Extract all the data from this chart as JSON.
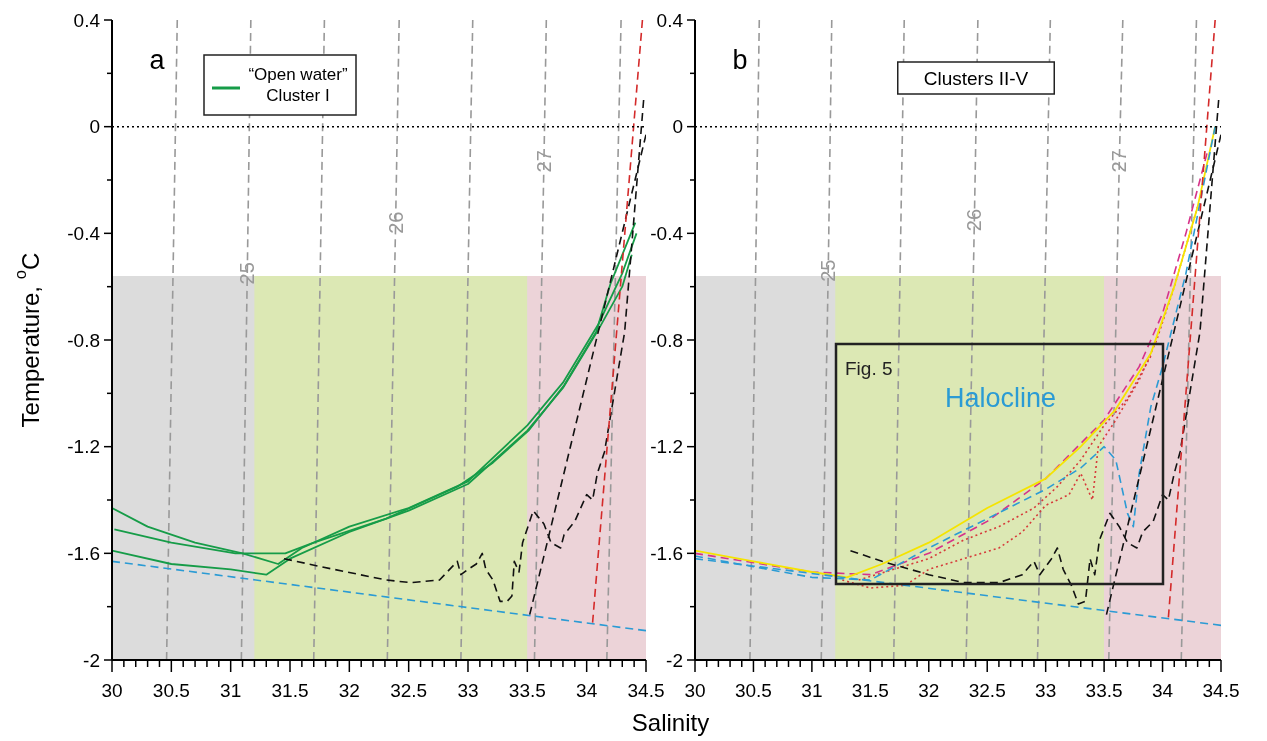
{
  "chart_data": [
    {
      "type": "line",
      "title": "a",
      "xlabel": "Salinity",
      "ylabel": "Temperature, $^{o}$C",
      "xlim": [
        30,
        34.5
      ],
      "ylim": [
        -2,
        0.4
      ],
      "xticks": [
        30,
        {
          "value": 30.1,
          "label": null
        },
        {
          "value": 30.2,
          "label": null
        },
        {
          "value": 30.3,
          "label": null
        },
        {
          "value": 30.4,
          "label": null
        },
        30.5,
        {
          "value": 30.6,
          "label": null
        },
        {
          "value": 30.7,
          "label": null
        },
        {
          "value": 30.8,
          "label": null
        },
        {
          "value": 30.9,
          "label": null
        },
        31,
        {
          "value": 31.1,
          "label": null
        },
        {
          "value": 31.2,
          "label": null
        },
        {
          "value": 31.3,
          "label": null
        },
        {
          "value": 31.4,
          "label": null
        },
        31.5,
        {
          "value": 31.6,
          "label": null
        },
        {
          "value": 31.7,
          "label": null
        },
        {
          "value": 31.8,
          "label": null
        },
        {
          "value": 31.9,
          "label": null
        },
        32,
        {
          "value": 32.1,
          "label": null
        },
        {
          "value": 32.2,
          "label": null
        },
        {
          "value": 32.3,
          "label": null
        },
        {
          "value": 32.4,
          "label": null
        },
        32.5,
        {
          "value": 32.6,
          "label": null
        },
        {
          "value": 32.7,
          "label": null
        },
        {
          "value": 32.8,
          "label": null
        },
        {
          "value": 32.9,
          "label": null
        },
        33,
        {
          "value": 33.1,
          "label": null
        },
        {
          "value": 33.2,
          "label": null
        },
        {
          "value": 33.3,
          "label": null
        },
        {
          "value": 33.4,
          "label": null
        },
        33.5,
        {
          "value": 33.6,
          "label": null
        },
        {
          "value": 33.7,
          "label": null
        },
        {
          "value": 33.8,
          "label": null
        },
        {
          "value": 33.9,
          "label": null
        },
        34,
        {
          "value": 34.1,
          "label": null
        },
        {
          "value": 34.2,
          "label": null
        },
        {
          "value": 34.3,
          "label": null
        },
        {
          "value": 34.4,
          "label": null
        },
        34.5
      ],
      "yticks": [
        -2,
        {
          "value": -1.8,
          "label": null
        },
        -1.6,
        {
          "value": -1.4,
          "label": null
        },
        -1.2,
        {
          "value": -1,
          "label": null
        },
        -0.8,
        {
          "value": -0.6,
          "label": null
        },
        -0.4,
        {
          "value": -0.2,
          "label": null
        },
        0,
        {
          "value": 0.2,
          "label": null
        },
        0.4
      ],
      "legend": "top left",
      "ref_lines": [
        {
          "axis": "y",
          "value": 0,
          "color": "#000000",
          "line_style": "dotted"
        }
      ],
      "bands": [
        {
          "axis": "y",
          "from": -2,
          "to": -0.56,
          "color": "#dcdcdc"
        },
        {
          "axis": "x",
          "from": 31.2,
          "to": 33.5,
          "color": "#dce8b4"
        },
        {
          "axis": "x",
          "from": 33.5,
          "to": 34.5,
          "color": "#ecd3d8"
        }
      ],
      "series": [
        {
          "color": "#999999",
          "line_style": "dashed",
          "x": [
            30.46,
            30.55
          ],
          "values": [
            -2,
            0.4
          ]
        },
        {
          "name": "25",
          "color": "#999999",
          "line_style": "dashed",
          "x": [
            31.09,
            31.14,
            31.17
          ],
          "values": [
            -2,
            -0.55,
            0.4
          ]
        },
        {
          "color": "#999999",
          "line_style": "dashed",
          "x": [
            31.7,
            31.79
          ],
          "values": [
            -2,
            0.4
          ]
        },
        {
          "name": "26",
          "color": "#999999",
          "line_style": "dashed",
          "x": [
            32.32,
            32.39,
            32.42
          ],
          "values": [
            -2,
            -0.36,
            0.4
          ]
        },
        {
          "color": "#999999",
          "line_style": "dashed",
          "x": [
            32.94,
            33.04
          ],
          "values": [
            -2,
            0.4
          ]
        },
        {
          "name": "27",
          "color": "#999999",
          "line_style": "dashed",
          "x": [
            33.56,
            33.64,
            33.66
          ],
          "values": [
            -2,
            -0.13,
            0.4
          ]
        },
        {
          "color": "#999999",
          "line_style": "dashed",
          "x": [
            34.17,
            34.29
          ],
          "values": [
            -2,
            0.4
          ]
        },
        {
          "color": "#169c48",
          "line_style": "solid",
          "x": [
            30,
            30.3,
            30.7,
            31.1,
            31.4,
            31.6,
            32,
            32.5,
            33,
            33.5,
            33.8,
            34.1,
            34.3,
            34.42
          ],
          "values": [
            -1.43,
            -1.5,
            -1.56,
            -1.6,
            -1.64,
            -1.58,
            -1.5,
            -1.43,
            -1.33,
            -1.12,
            -0.96,
            -0.74,
            -0.55,
            -0.4
          ]
        },
        {
          "color": "#169c48",
          "line_style": "solid",
          "x": [
            30,
            30.5,
            31,
            31.3,
            31.5,
            32,
            32.5,
            33,
            33.5,
            33.8,
            34.1,
            34.3,
            34.38
          ],
          "values": [
            -1.59,
            -1.64,
            -1.66,
            -1.68,
            -1.62,
            -1.52,
            -1.44,
            -1.34,
            -1.14,
            -0.98,
            -0.76,
            -0.6,
            -0.48
          ]
        },
        {
          "name": "“Open water” Cluster I",
          "color": "#169c48",
          "line_style": "solid",
          "x": [
            30.02,
            30.5,
            31.04,
            31.46,
            31.7,
            32.31,
            32.91,
            33.21,
            33.51,
            33.81,
            34.08,
            34.2,
            34.41
          ],
          "values": [
            -1.51,
            -1.56,
            -1.6,
            -1.6,
            -1.56,
            -1.47,
            -1.35,
            -1.26,
            -1.14,
            -0.97,
            -0.77,
            -0.59,
            -0.36
          ]
        },
        {
          "color": "#111111",
          "line_style": "dashed",
          "x": [
            31.45,
            31.76,
            32.31,
            32.52,
            32.76,
            32.91,
            32.94,
            33,
            33.07,
            33.12,
            33.15,
            33.21,
            33.27,
            33.33,
            33.37,
            33.39,
            33.43,
            33.46,
            33.55,
            33.64,
            33.7,
            33.78,
            33.81,
            33.9,
            34,
            34.05,
            34.09,
            34.15,
            34.32,
            34.48
          ],
          "values": [
            -1.62,
            -1.65,
            -1.7,
            -1.71,
            -1.7,
            -1.63,
            -1.68,
            -1.66,
            -1.64,
            -1.6,
            -1.66,
            -1.7,
            -1.78,
            -1.78,
            -1.76,
            -1.63,
            -1.67,
            -1.56,
            -1.44,
            -1.49,
            -1.56,
            -1.58,
            -1.53,
            -1.48,
            -1.38,
            -1.4,
            -1.3,
            -1.22,
            -0.77,
            0.1
          ]
        },
        {
          "color": "#111111",
          "line_style": "dashed",
          "x": [
            33.52,
            34.5
          ],
          "values": [
            -1.83,
            -0.03
          ]
        },
        {
          "color": "#d42a2a",
          "line_style": "dashed",
          "x": [
            34.05,
            34.47
          ],
          "values": [
            -1.86,
            0.4
          ]
        },
        {
          "color": "#2b9bd4",
          "line_style": "dashed",
          "x": [
            30,
            34.5
          ],
          "values": [
            -1.63,
            -1.89
          ]
        }
      ]
    },
    {
      "type": "line",
      "title": "b",
      "xlim": [
        30,
        34.5
      ],
      "ylim": [
        -2,
        0.4
      ],
      "xticks": [
        30,
        {
          "value": 30.1,
          "label": null
        },
        {
          "value": 30.2,
          "label": null
        },
        {
          "value": 30.3,
          "label": null
        },
        {
          "value": 30.4,
          "label": null
        },
        30.5,
        {
          "value": 30.6,
          "label": null
        },
        {
          "value": 30.7,
          "label": null
        },
        {
          "value": 30.8,
          "label": null
        },
        {
          "value": 30.9,
          "label": null
        },
        31,
        {
          "value": 31.1,
          "label": null
        },
        {
          "value": 31.2,
          "label": null
        },
        {
          "value": 31.3,
          "label": null
        },
        {
          "value": 31.4,
          "label": null
        },
        31.5,
        {
          "value": 31.6,
          "label": null
        },
        {
          "value": 31.7,
          "label": null
        },
        {
          "value": 31.8,
          "label": null
        },
        {
          "value": 31.9,
          "label": null
        },
        32,
        {
          "value": 32.1,
          "label": null
        },
        {
          "value": 32.2,
          "label": null
        },
        {
          "value": 32.3,
          "label": null
        },
        {
          "value": 32.4,
          "label": null
        },
        32.5,
        {
          "value": 32.6,
          "label": null
        },
        {
          "value": 32.7,
          "label": null
        },
        {
          "value": 32.8,
          "label": null
        },
        {
          "value": 32.9,
          "label": null
        },
        33,
        {
          "value": 33.1,
          "label": null
        },
        {
          "value": 33.2,
          "label": null
        },
        {
          "value": 33.3,
          "label": null
        },
        {
          "value": 33.4,
          "label": null
        },
        33.5,
        {
          "value": 33.6,
          "label": null
        },
        {
          "value": 33.7,
          "label": null
        },
        {
          "value": 33.8,
          "label": null
        },
        {
          "value": 33.9,
          "label": null
        },
        34,
        {
          "value": 34.1,
          "label": null
        },
        {
          "value": 34.2,
          "label": null
        },
        {
          "value": 34.3,
          "label": null
        },
        {
          "value": 34.4,
          "label": null
        },
        34.5
      ],
      "yticks": [
        -2,
        {
          "value": -1.8,
          "label": null
        },
        -1.6,
        {
          "value": -1.4,
          "label": null
        },
        -1.2,
        {
          "value": -1,
          "label": null
        },
        -0.8,
        {
          "value": -0.6,
          "label": null
        },
        -0.4,
        {
          "value": -0.2,
          "label": null
        },
        0,
        {
          "value": 0.2,
          "label": null
        },
        0.4
      ],
      "ref_lines": [
        {
          "axis": "y",
          "value": 0,
          "color": "#000000",
          "line_style": "dotted"
        }
      ],
      "annotations": [
        "Clusters II-V",
        "Fig. 5",
        "Halocline"
      ],
      "bands": [
        {
          "axis": "y",
          "from": -2,
          "to": -0.56,
          "color": "#dcdcdc"
        },
        {
          "axis": "x",
          "from": 31.2,
          "to": 33.5,
          "color": "#dce8b4"
        },
        {
          "axis": "x",
          "from": 33.5,
          "to": 34.5,
          "color": "#ecd3d8"
        }
      ],
      "series": [
        {
          "color": "#999999",
          "line_style": "dashed",
          "x": [
            30.47,
            30.55
          ],
          "values": [
            -2,
            0.4
          ]
        },
        {
          "name": "25",
          "color": "#999999",
          "line_style": "dashed",
          "x": [
            31.08,
            31.14,
            31.17
          ],
          "values": [
            -2,
            -0.54,
            0.4
          ]
        },
        {
          "color": "#999999",
          "line_style": "dashed",
          "x": [
            31.7,
            31.79
          ],
          "values": [
            -2,
            0.4
          ]
        },
        {
          "name": "26",
          "color": "#999999",
          "line_style": "dashed",
          "x": [
            32.32,
            32.39,
            32.42
          ],
          "values": [
            -2,
            -0.35,
            0.4
          ]
        },
        {
          "color": "#999999",
          "line_style": "dashed",
          "x": [
            32.93,
            33.04
          ],
          "values": [
            -2,
            0.4
          ]
        },
        {
          "name": "27",
          "color": "#999999",
          "line_style": "dashed",
          "x": [
            33.54,
            33.63,
            33.66
          ],
          "values": [
            -2,
            -0.13,
            0.4
          ]
        },
        {
          "color": "#999999",
          "line_style": "dashed",
          "x": [
            34.16,
            34.29
          ],
          "values": [
            -2,
            0.4
          ]
        },
        {
          "color": "#d63a3a",
          "line_style": "dotted",
          "x": [
            31.26,
            31.5,
            31.8,
            32,
            32.3,
            32.6,
            32.8,
            33,
            33.2,
            33.3,
            33.4,
            33.45,
            33.6,
            33.8,
            33.95,
            34.1,
            34.3
          ],
          "values": [
            -1.7,
            -1.73,
            -1.72,
            -1.66,
            -1.62,
            -1.58,
            -1.52,
            -1.42,
            -1.38,
            -1.3,
            -1.4,
            -1.2,
            -1.1,
            -0.95,
            -0.8,
            -0.6,
            -0.3
          ]
        },
        {
          "color": "#d63a3a",
          "line_style": "dotted",
          "x": [
            31.4,
            31.7,
            32,
            32.3,
            32.6,
            32.9,
            33.1,
            33.3,
            33.5,
            33.7,
            33.9
          ],
          "values": [
            -1.7,
            -1.66,
            -1.62,
            -1.55,
            -1.5,
            -1.43,
            -1.35,
            -1.25,
            -1.12,
            -1.02,
            -0.86
          ]
        },
        {
          "color": "#d6338a",
          "line_style": "dashed",
          "x": [
            30,
            31,
            31.5,
            32,
            32.5,
            33,
            33.5,
            33.8,
            34,
            34.2,
            34.38
          ],
          "values": [
            -1.6,
            -1.67,
            -1.68,
            -1.6,
            -1.48,
            -1.32,
            -1.1,
            -0.9,
            -0.7,
            -0.4,
            -0.1
          ]
        },
        {
          "color": "#f5e400",
          "line_style": "solid",
          "x": [
            30,
            30.5,
            31,
            31.3,
            31.6,
            32,
            32.5,
            33,
            33.3,
            33.6,
            33.9,
            34.1,
            34.3,
            34.45
          ],
          "values": [
            -1.59,
            -1.63,
            -1.67,
            -1.69,
            -1.64,
            -1.56,
            -1.43,
            -1.32,
            -1.2,
            -1.06,
            -0.85,
            -0.6,
            -0.3,
            0
          ]
        },
        {
          "color": "#2b9bd4",
          "line_style": "dashed",
          "x": [
            30,
            30.5,
            31,
            31.5,
            32,
            32.5,
            33,
            33.3,
            33.5,
            33.6,
            33.7,
            33.75,
            33.8,
            33.9,
            34,
            34.2,
            34.45
          ],
          "values": [
            -1.61,
            -1.65,
            -1.69,
            -1.7,
            -1.58,
            -1.47,
            -1.36,
            -1.28,
            -1.2,
            -1.25,
            -1.45,
            -1.5,
            -1.3,
            -1.05,
            -0.9,
            -0.55,
            0
          ]
        },
        {
          "color": "#111111",
          "line_style": "dashed",
          "x": [
            31.33,
            31.6,
            32,
            32.3,
            32.6,
            32.8,
            32.9,
            32.95,
            33.05,
            33.1,
            33.15,
            33.22,
            33.28,
            33.34,
            33.38,
            33.42,
            33.46,
            33.55,
            33.63,
            33.7,
            33.78,
            33.83,
            33.92,
            34,
            34.05,
            34.1,
            34.15,
            34.32,
            34.48
          ],
          "values": [
            -1.59,
            -1.63,
            -1.68,
            -1.71,
            -1.71,
            -1.68,
            -1.63,
            -1.68,
            -1.62,
            -1.58,
            -1.66,
            -1.72,
            -1.79,
            -1.78,
            -1.62,
            -1.68,
            -1.55,
            -1.45,
            -1.5,
            -1.56,
            -1.58,
            -1.52,
            -1.48,
            -1.38,
            -1.4,
            -1.3,
            -1.22,
            -0.77,
            0.1
          ]
        },
        {
          "color": "#111111",
          "line_style": "dashed",
          "x": [
            33.52,
            34.5
          ],
          "values": [
            -1.83,
            -0.03
          ]
        },
        {
          "color": "#d42a2a",
          "line_style": "dashed",
          "x": [
            34.05,
            34.45
          ],
          "values": [
            -1.84,
            0.4
          ]
        },
        {
          "color": "#2b9bd4",
          "line_style": "dashed",
          "x": [
            30,
            34.5
          ],
          "values": [
            -1.62,
            -1.87
          ]
        }
      ]
    }
  ]
}
